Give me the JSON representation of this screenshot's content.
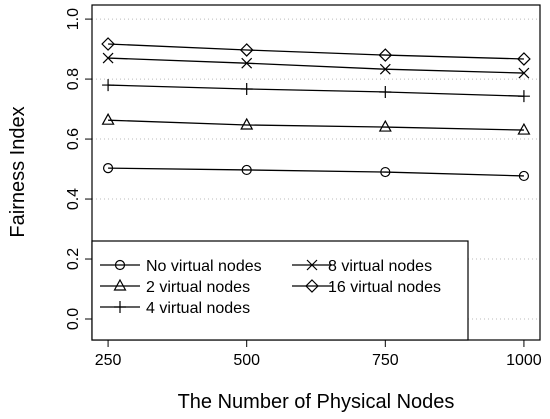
{
  "chart_data": {
    "type": "line",
    "xlabel": "The Number of Physical Nodes",
    "ylabel": "Fairness Index",
    "x": [
      250,
      500,
      750,
      1000
    ],
    "xlim": [
      221,
      1029
    ],
    "xticks": [
      250,
      500,
      750,
      1000
    ],
    "ylim": [
      -0.07,
      1.047
    ],
    "yticks": [
      {
        "value": 0,
        "label": "0.0"
      },
      {
        "value": 0.2,
        "label": "0.2"
      },
      {
        "value": 0.4,
        "label": "0.4"
      },
      {
        "value": 0.6,
        "label": "0.6"
      },
      {
        "value": 0.8,
        "label": "0.8"
      },
      {
        "value": 1,
        "label": "1.0"
      }
    ],
    "grid": true,
    "legend": "bottom-left",
    "series": [
      {
        "name": "No virtual nodes",
        "color": "#000000",
        "marker": "circle",
        "values": [
          0.503,
          0.497,
          0.49,
          0.477
        ]
      },
      {
        "name": "2 virtual nodes",
        "color": "#000000",
        "marker": "triangle",
        "values": [
          0.663,
          0.647,
          0.64,
          0.63
        ]
      },
      {
        "name": "4 virtual nodes",
        "color": "#000000",
        "marker": "plus",
        "values": [
          0.78,
          0.767,
          0.757,
          0.743
        ]
      },
      {
        "name": "8 virtual nodes",
        "color": "#000000",
        "marker": "cross",
        "values": [
          0.87,
          0.853,
          0.833,
          0.82
        ]
      },
      {
        "name": "16 virtual nodes",
        "color": "#000000",
        "marker": "diamond",
        "values": [
          0.917,
          0.897,
          0.88,
          0.867
        ]
      }
    ]
  }
}
